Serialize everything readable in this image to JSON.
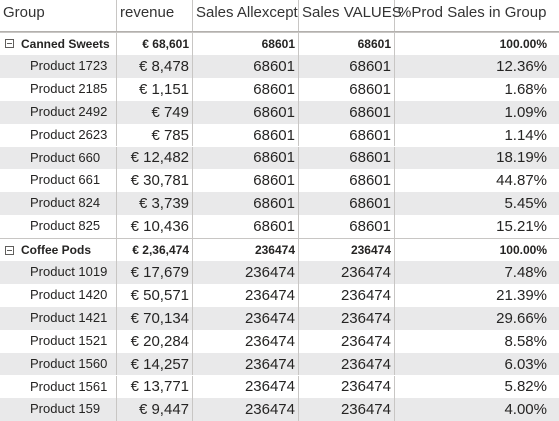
{
  "headers": [
    "Group",
    "revenue",
    "Sales Allexcept",
    "Sales VALUES",
    "%Prod Sales in Group"
  ],
  "rows": [
    {
      "type": "group",
      "cells": [
        "Canned Sweets",
        "€ 68,601",
        "68601",
        "68601",
        "100.00%"
      ]
    },
    {
      "type": "detail",
      "cells": [
        "Product 1723",
        "€ 8,478",
        "68601",
        "68601",
        "12.36%"
      ]
    },
    {
      "type": "detail",
      "cells": [
        "Product 2185",
        "€ 1,151",
        "68601",
        "68601",
        "1.68%"
      ]
    },
    {
      "type": "detail",
      "cells": [
        "Product 2492",
        "€ 749",
        "68601",
        "68601",
        "1.09%"
      ]
    },
    {
      "type": "detail",
      "cells": [
        "Product 2623",
        "€ 785",
        "68601",
        "68601",
        "1.14%"
      ]
    },
    {
      "type": "detail",
      "cells": [
        "Product 660",
        "€ 12,482",
        "68601",
        "68601",
        "18.19%"
      ]
    },
    {
      "type": "detail",
      "cells": [
        "Product 661",
        "€ 30,781",
        "68601",
        "68601",
        "44.87%"
      ]
    },
    {
      "type": "detail",
      "cells": [
        "Product 824",
        "€ 3,739",
        "68601",
        "68601",
        "5.45%"
      ]
    },
    {
      "type": "detail",
      "cells": [
        "Product 825",
        "€ 10,436",
        "68601",
        "68601",
        "15.21%"
      ]
    },
    {
      "type": "group",
      "cells": [
        "Coffee Pods",
        "€ 2,36,474",
        "236474",
        "236474",
        "100.00%"
      ]
    },
    {
      "type": "detail",
      "cells": [
        "Product 1019",
        "€ 17,679",
        "236474",
        "236474",
        "7.48%"
      ]
    },
    {
      "type": "detail",
      "cells": [
        "Product 1420",
        "€ 50,571",
        "236474",
        "236474",
        "21.39%"
      ]
    },
    {
      "type": "detail",
      "cells": [
        "Product 1421",
        "€ 70,134",
        "236474",
        "236474",
        "29.66%"
      ]
    },
    {
      "type": "detail",
      "cells": [
        "Product 1521",
        "€ 20,284",
        "236474",
        "236474",
        "8.58%"
      ]
    },
    {
      "type": "detail",
      "cells": [
        "Product 1560",
        "€ 14,257",
        "236474",
        "236474",
        "6.03%"
      ]
    },
    {
      "type": "detail",
      "cells": [
        "Product 1561",
        "€ 13,771",
        "236474",
        "236474",
        "5.82%"
      ]
    },
    {
      "type": "detail",
      "cells": [
        "Product 159",
        "€ 9,447",
        "236474",
        "236474",
        "4.00%"
      ]
    }
  ]
}
